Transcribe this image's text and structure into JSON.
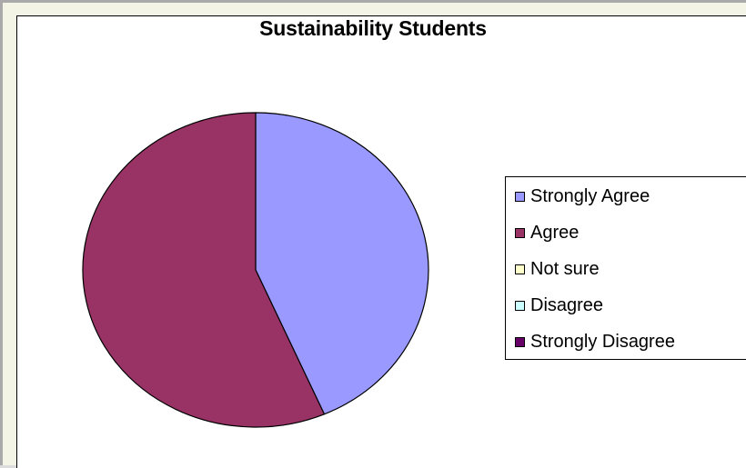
{
  "chart_data": {
    "type": "pie",
    "title": "Sustainability Students",
    "categories": [
      "Strongly Agree",
      "Agree",
      "Not sure",
      "Disagree",
      "Strongly Disagree"
    ],
    "values": [
      43.5,
      56.5,
      0,
      0,
      0
    ],
    "colors": [
      "#9999ff",
      "#993366",
      "#ffffcc",
      "#ccffff",
      "#660066"
    ],
    "legend_position": "right"
  }
}
